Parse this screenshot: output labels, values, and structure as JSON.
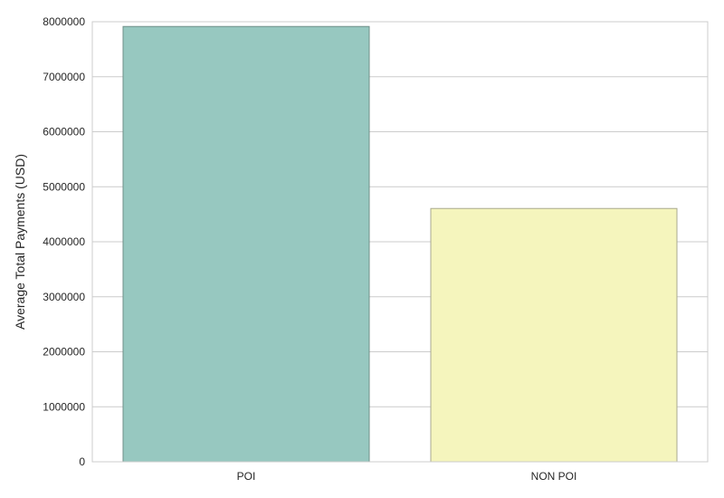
{
  "chart_data": {
    "type": "bar",
    "title": "",
    "xlabel": "",
    "ylabel": "Average Total Payments (USD)",
    "categories": [
      "POI",
      "NON POI"
    ],
    "values": [
      7913590,
      4605000
    ],
    "ylim": [
      0,
      8000000
    ],
    "yticks": [
      "0",
      "1000000",
      "2000000",
      "3000000",
      "4000000",
      "5000000",
      "6000000",
      "7000000",
      "8000000"
    ],
    "grid": "horizontal",
    "colors": [
      "#97c8c0",
      "#f5f5bd"
    ],
    "edge_colors": [
      "#6f8f89",
      "#a9a98f"
    ]
  }
}
